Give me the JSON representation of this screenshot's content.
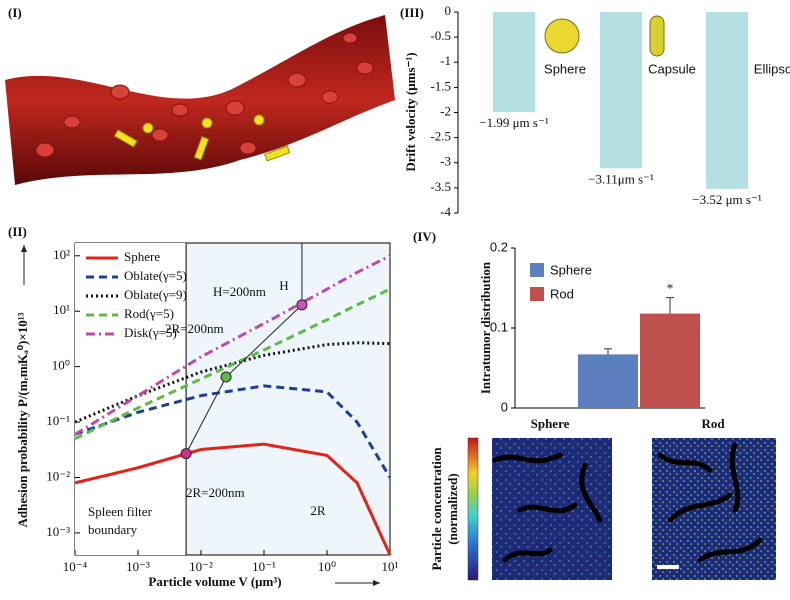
{
  "panel_I": {
    "label": "(I)"
  },
  "chart_data": [
    {
      "type": "bar",
      "panel_label": "(III)",
      "y_label": "Drift velocity (μms⁻¹)",
      "categories": [
        "Sphere",
        "Capsule",
        "Ellipsoid"
      ],
      "values": [
        -1.99,
        -3.11,
        -3.52
      ],
      "value_labels": [
        "−1.99 μm s⁻¹",
        "−3.11μm s⁻¹",
        "−3.52 μm s⁻¹"
      ],
      "color": "#b3e0e3",
      "ylim": [
        -4,
        0
      ],
      "yticks": [
        0,
        -0.5,
        -1,
        -1.5,
        -2,
        -2.5,
        -3,
        -3.5,
        -4
      ]
    },
    {
      "type": "line",
      "panel_label": "(II)",
      "log_x": true,
      "log_y": true,
      "x_label": "Particle volume V (μm³)",
      "y_label": "Adhesion probability P/(mᵣmₗKₐ⁰)×10¹³",
      "x": [
        0.0001,
        0.001,
        0.01,
        0.1,
        1,
        3,
        10
      ],
      "series": [
        {
          "name": "Sphere",
          "color": "#e3241b",
          "dash": "solid",
          "values": [
            0.008,
            0.015,
            0.032,
            0.04,
            0.025,
            0.008,
            0.0004
          ]
        },
        {
          "name": "Oblate(γ=5)",
          "color": "#1f3e9a",
          "dash": "dashed",
          "values": [
            0.06,
            0.15,
            0.3,
            0.45,
            0.35,
            0.1,
            0.01
          ]
        },
        {
          "name": "Oblate(γ=9)",
          "color": "#111111",
          "dash": "dotted",
          "values": [
            0.1,
            0.3,
            0.8,
            1.6,
            2.5,
            2.7,
            2.6
          ]
        },
        {
          "name": "Rod(γ=5)",
          "color": "#5dbb46",
          "dash": "dashed",
          "values": [
            0.05,
            0.18,
            0.6,
            2,
            7,
            13,
            25
          ]
        },
        {
          "name": "Disk(γ=5)",
          "color": "#c04aa8",
          "dash": "dashdot",
          "values": [
            0.06,
            0.3,
            1.5,
            6,
            25,
            50,
            100
          ]
        }
      ],
      "markers": [
        {
          "x": 0.0058,
          "y": 0.027,
          "color": "#d62c8a"
        },
        {
          "x": 0.025,
          "y": 0.65,
          "color": "#5dbb46"
        },
        {
          "x": 0.4,
          "y": 13,
          "color": "#d050c0"
        }
      ],
      "vline_x": 0.0058,
      "annotations": [
        "H=200nm",
        "H",
        "2R=200nm",
        "2R=200nm",
        "Spleen filter",
        "boundary",
        "2R"
      ],
      "xlim": [
        0.0001,
        10
      ],
      "ylim": [
        0.0004,
        170
      ],
      "xticks": [
        {
          "value": 0.0001,
          "label": "10⁻⁴"
        },
        {
          "value": 0.001,
          "label": "10⁻³"
        },
        {
          "value": 0.01,
          "label": "10⁻²"
        },
        {
          "value": 0.1,
          "label": "10⁻¹"
        },
        {
          "value": 1,
          "label": "10⁰"
        },
        {
          "value": 10,
          "label": "10¹"
        }
      ],
      "yticks": [
        {
          "value": 0.001,
          "label": "10⁻³"
        },
        {
          "value": 0.01,
          "label": "10⁻²"
        },
        {
          "value": 0.1,
          "label": "10⁻¹"
        },
        {
          "value": 1,
          "label": "10⁰"
        },
        {
          "value": 10,
          "label": "10¹"
        },
        {
          "value": 100,
          "label": "10²"
        }
      ],
      "legend": "upper left"
    },
    {
      "type": "bar",
      "panel_label": "(IV)",
      "y_label": "Intratumor distribution",
      "categories": [
        "Sphere",
        "Rod"
      ],
      "values": [
        0.067,
        0.118
      ],
      "errors": [
        0.007,
        0.02
      ],
      "colors": [
        "#5b7fbf",
        "#c0504d"
      ],
      "significance": "*",
      "ylim": [
        0,
        0.2
      ],
      "yticks": [
        0,
        0.1,
        0.2
      ],
      "legend": "upper left",
      "image_titles": [
        "Sphere",
        "Rod"
      ],
      "colorbar_label": [
        "Particle concentration",
        "(normalized)"
      ]
    }
  ]
}
